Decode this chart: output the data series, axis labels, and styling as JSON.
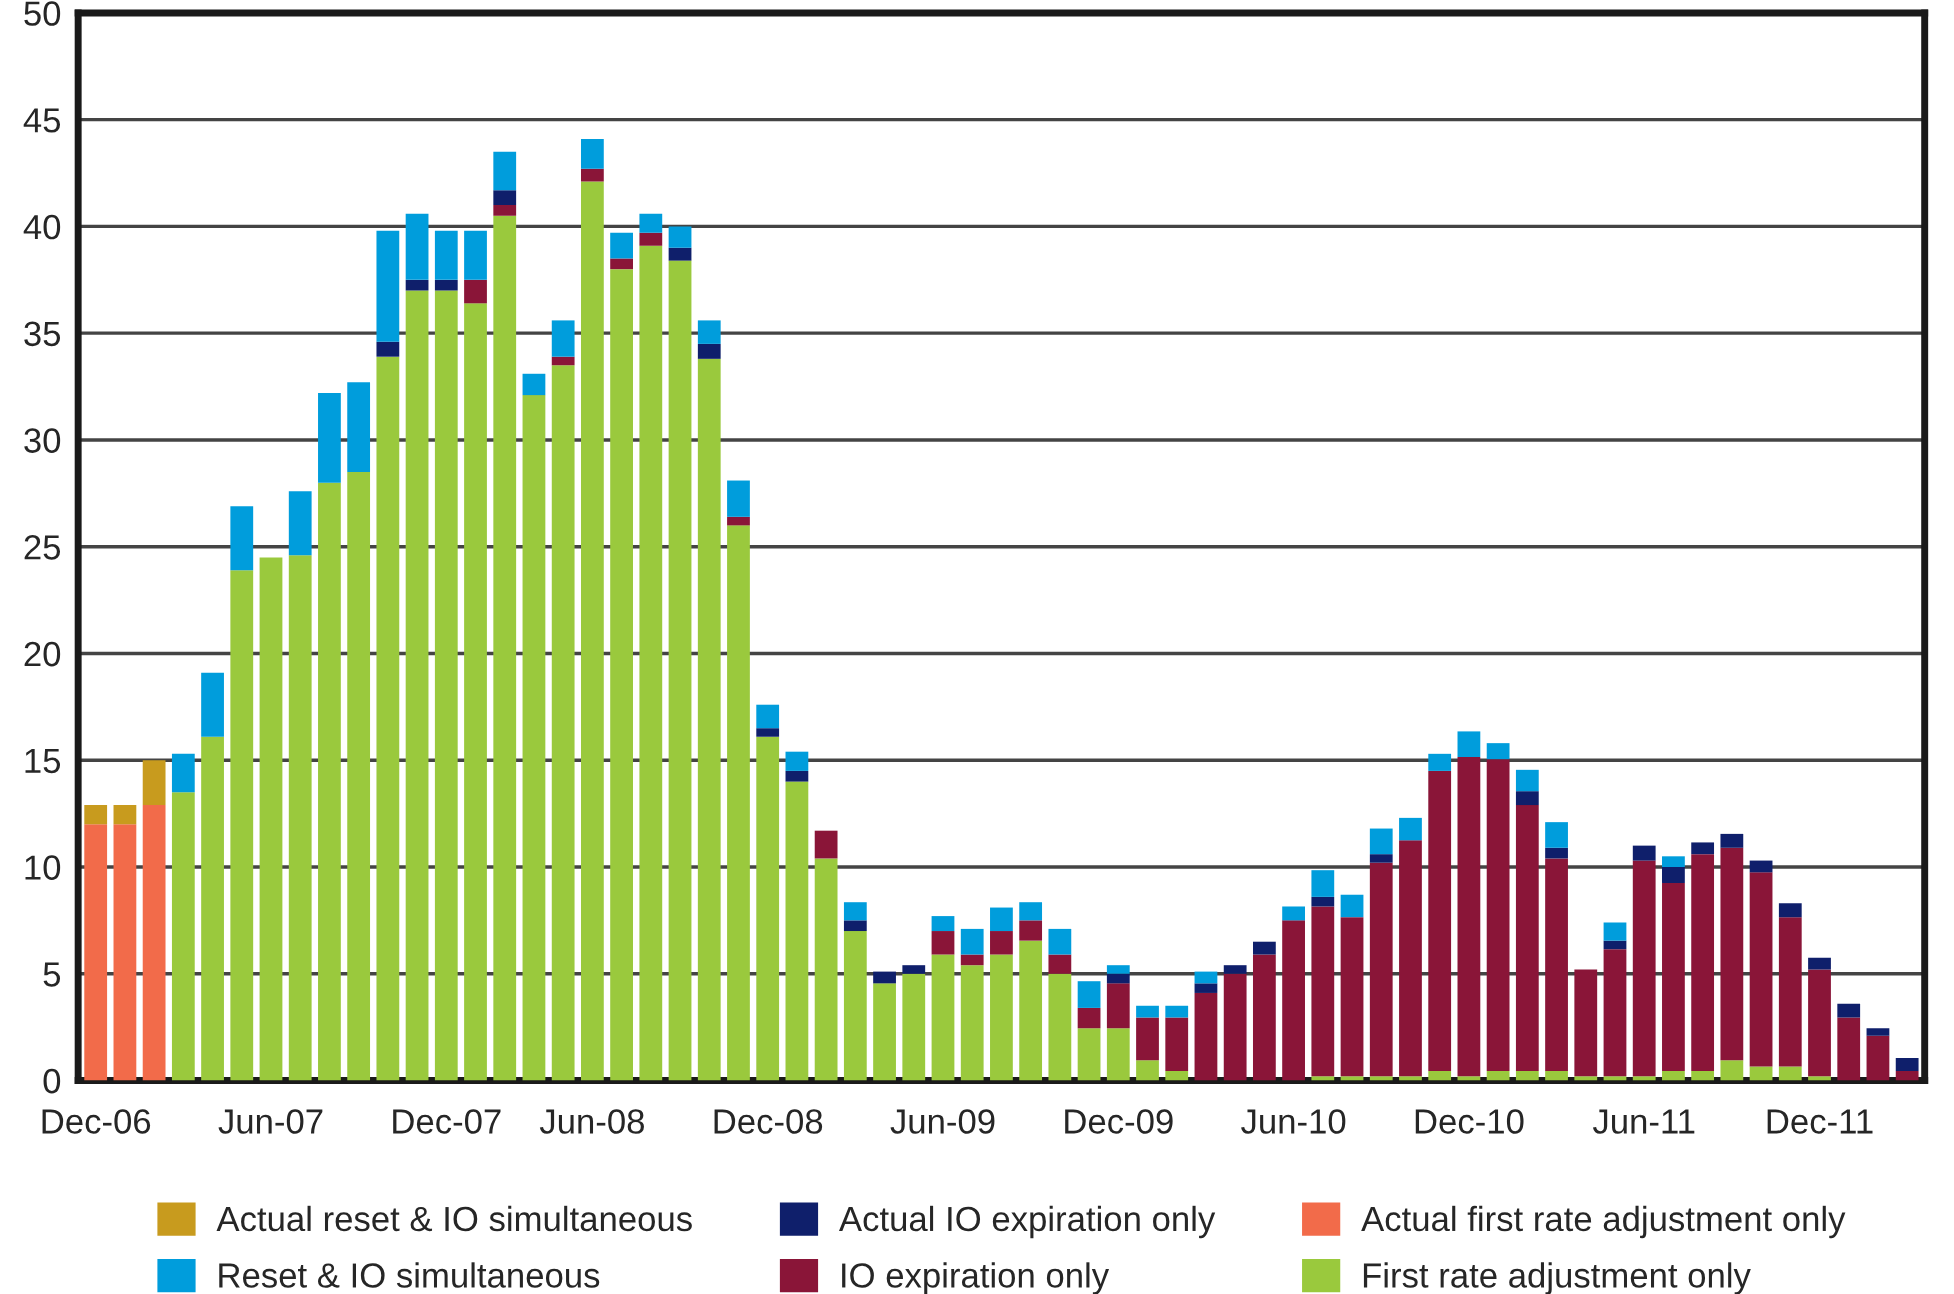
{
  "chart_data": {
    "type": "bar",
    "stacked": true,
    "categories": [
      "Dec-06",
      null,
      null,
      null,
      null,
      null,
      "Jun-07",
      null,
      null,
      null,
      null,
      null,
      "Dec-07",
      null,
      null,
      null,
      null,
      "Jun-08",
      null,
      null,
      null,
      null,
      null,
      "Dec-08",
      null,
      null,
      null,
      null,
      null,
      "Jun-09",
      null,
      null,
      null,
      null,
      null,
      "Dec-09",
      null,
      null,
      null,
      null,
      null,
      "Jun-10",
      null,
      null,
      null,
      null,
      null,
      "Dec-10",
      null,
      null,
      null,
      null,
      null,
      "Jun-11",
      null,
      null,
      null,
      null,
      null,
      "Dec-11",
      null,
      null,
      null
    ],
    "series": [
      {
        "name": "First rate adjustment only",
        "color": "#9ac93d",
        "values": [
          null,
          null,
          null,
          13.5,
          16.1,
          23.9,
          24.5,
          24.6,
          28.0,
          28.5,
          33.9,
          37.0,
          37.0,
          36.4,
          40.5,
          32.1,
          33.5,
          42.1,
          38.0,
          39.1,
          38.4,
          33.8,
          26.0,
          16.1,
          14.0,
          10.4,
          7.0,
          4.55,
          5.0,
          5.9,
          5.4,
          5.9,
          6.55,
          5.0,
          2.45,
          2.45,
          0.95,
          0.45,
          null,
          null,
          null,
          null,
          0.2,
          0.2,
          0.2,
          0.2,
          0.45,
          0.2,
          0.45,
          0.45,
          0.45,
          0.2,
          0.2,
          0.2,
          0.45,
          0.45,
          0.95,
          0.65,
          0.65,
          0.2,
          null,
          null,
          null
        ]
      },
      {
        "name": "Actual first rate adjustment only",
        "color": "#f26b4a",
        "values": [
          12.0,
          12.0,
          12.9,
          null,
          null,
          null,
          null,
          null,
          null,
          null,
          null,
          null,
          null,
          null,
          null,
          null,
          null,
          null,
          null,
          null,
          null,
          null,
          null,
          null,
          null,
          null,
          null,
          null,
          null,
          null,
          null,
          null,
          null,
          null,
          null,
          null,
          null,
          null,
          null,
          null,
          null,
          null,
          null,
          null,
          null,
          null,
          null,
          null,
          null,
          null,
          null,
          null,
          null,
          null,
          null,
          null,
          null,
          null,
          null,
          null,
          null,
          null,
          null
        ]
      },
      {
        "name": "IO expiration only",
        "color": "#8a1538",
        "values": [
          null,
          null,
          null,
          null,
          null,
          null,
          null,
          null,
          null,
          null,
          null,
          null,
          null,
          1.1,
          0.5,
          null,
          0.4,
          0.6,
          0.5,
          0.6,
          null,
          null,
          0.4,
          null,
          null,
          1.3,
          null,
          null,
          null,
          1.1,
          0.5,
          1.1,
          0.95,
          0.9,
          0.95,
          2.1,
          2.0,
          2.5,
          4.1,
          5.0,
          5.9,
          7.5,
          7.95,
          7.45,
          10.0,
          11.05,
          14.05,
          14.95,
          14.6,
          12.45,
          9.95,
          5.0,
          5.95,
          10.1,
          8.8,
          10.15,
          9.95,
          9.1,
          7.0,
          5.0,
          2.95,
          2.1,
          0.45
        ]
      },
      {
        "name": "Actual IO expiration only",
        "color": "#0f1f6b",
        "values": [
          null,
          null,
          null,
          null,
          null,
          null,
          null,
          null,
          null,
          null,
          0.7,
          0.5,
          0.5,
          null,
          0.7,
          null,
          null,
          null,
          null,
          null,
          0.6,
          0.7,
          null,
          0.4,
          0.5,
          null,
          0.5,
          0.55,
          0.4,
          null,
          null,
          null,
          null,
          null,
          null,
          0.45,
          null,
          null,
          0.45,
          0.4,
          0.6,
          null,
          0.45,
          null,
          0.4,
          null,
          null,
          null,
          null,
          0.65,
          0.5,
          null,
          0.4,
          0.7,
          0.75,
          0.55,
          0.65,
          0.55,
          0.65,
          0.55,
          0.65,
          0.35,
          0.6
        ]
      },
      {
        "name": "Reset & IO simultaneous",
        "color": "#009ddc",
        "values": [
          null,
          null,
          null,
          1.8,
          3.0,
          3.0,
          null,
          3.0,
          4.2,
          4.2,
          5.2,
          3.1,
          2.3,
          2.3,
          1.8,
          1.0,
          1.7,
          1.4,
          1.2,
          0.9,
          1.0,
          1.1,
          1.7,
          1.1,
          0.9,
          null,
          0.85,
          null,
          null,
          0.7,
          1.2,
          1.1,
          0.85,
          1.2,
          1.25,
          0.4,
          0.55,
          0.55,
          0.55,
          null,
          null,
          0.65,
          1.25,
          1.05,
          1.2,
          1.05,
          0.8,
          1.2,
          0.75,
          1.0,
          1.2,
          null,
          0.85,
          null,
          0.5,
          null,
          null,
          null,
          null,
          null,
          null,
          null,
          null
        ]
      },
      {
        "name": "Actual reset & IO simultaneous",
        "color": "#c89b1e",
        "values": [
          0.9,
          0.9,
          2.1,
          null,
          null,
          null,
          null,
          null,
          null,
          null,
          null,
          null,
          null,
          null,
          null,
          null,
          null,
          null,
          null,
          null,
          null,
          null,
          null,
          null,
          null,
          null,
          null,
          null,
          null,
          null,
          null,
          null,
          null,
          null,
          null,
          null,
          null,
          null,
          null,
          null,
          null,
          null,
          null,
          null,
          null,
          null,
          null,
          null,
          null,
          null,
          null,
          null,
          null,
          null,
          null,
          null,
          null,
          null,
          null,
          null,
          null,
          null,
          null
        ]
      }
    ],
    "ylim": [
      0,
      50
    ],
    "yticks": [
      0,
      5,
      10,
      15,
      20,
      25,
      30,
      35,
      40,
      45,
      50
    ],
    "grid": "y",
    "legend": "bottom"
  }
}
